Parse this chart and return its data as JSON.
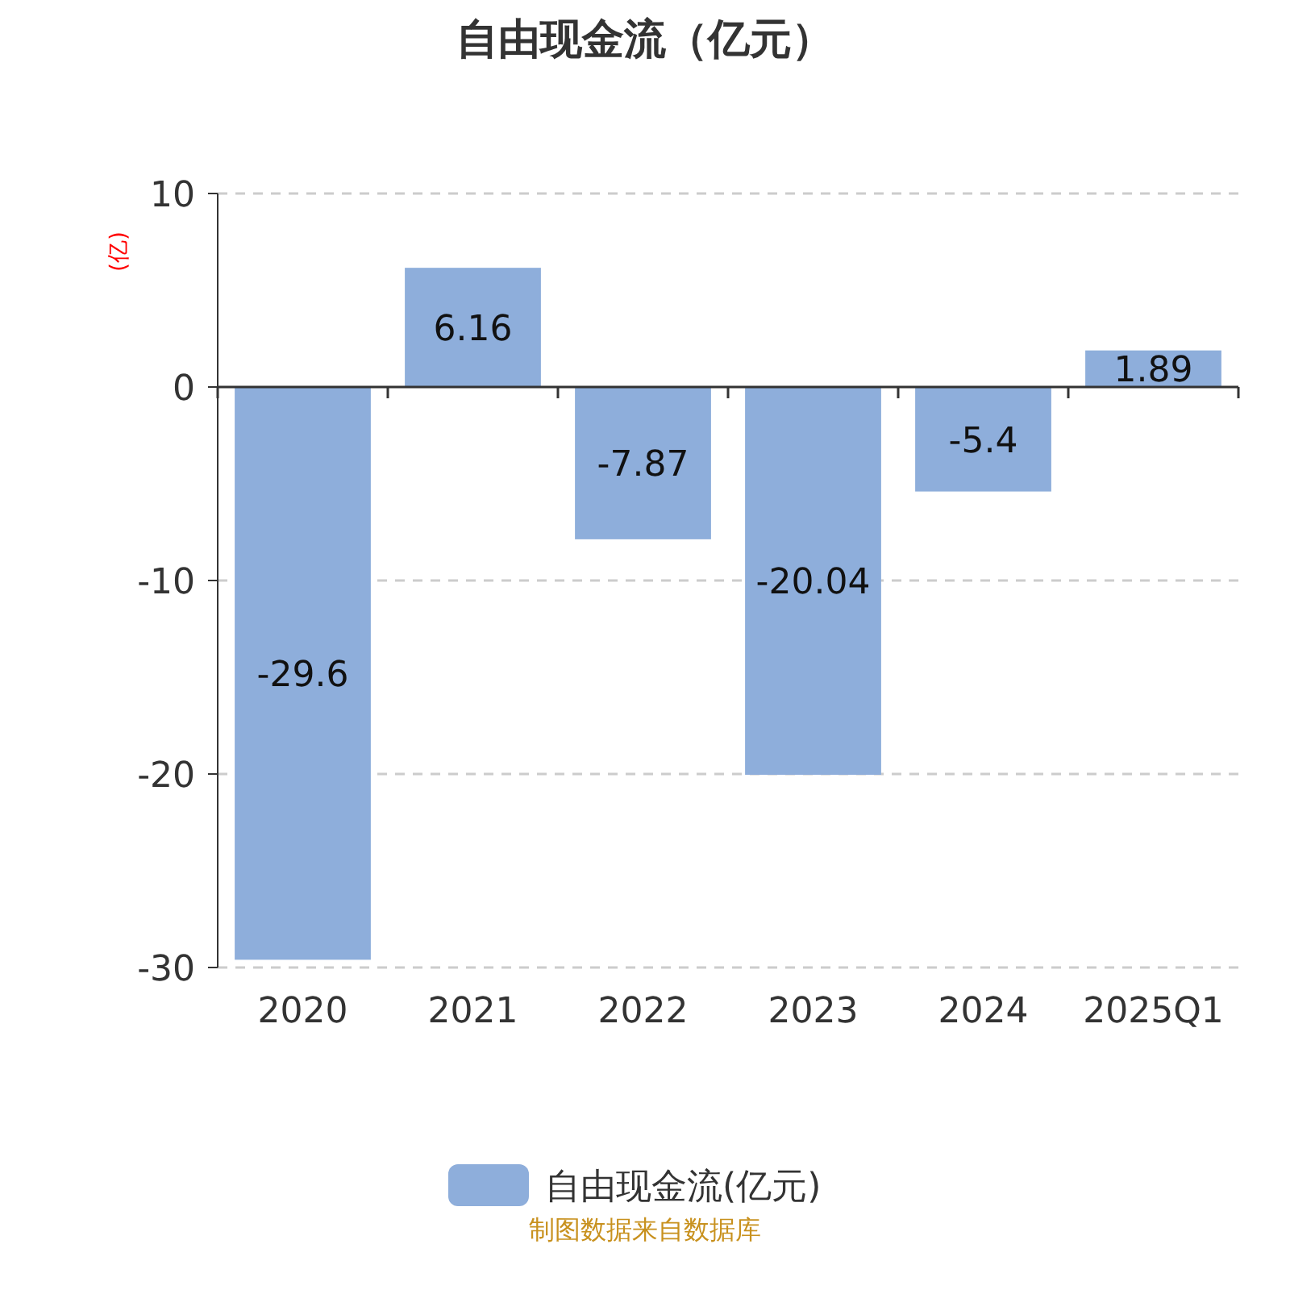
{
  "chart_data": {
    "type": "bar",
    "title": "自由现金流（亿元）",
    "ylabel": "(亿)",
    "categories": [
      "2020",
      "2021",
      "2022",
      "2023",
      "2024",
      "2025Q1"
    ],
    "series": [
      {
        "name": "自由现金流(亿元)",
        "color": "#8eaedb",
        "values": [
          -29.6,
          6.16,
          -7.87,
          -20.04,
          -5.4,
          1.89
        ]
      }
    ],
    "ylim": [
      -30,
      10
    ],
    "yticks": [
      -30,
      -20,
      -10,
      0,
      10
    ],
    "grid": "y",
    "legend": "bottom",
    "data_labels": true,
    "annotations": [
      "制图数据来自数据库"
    ]
  }
}
